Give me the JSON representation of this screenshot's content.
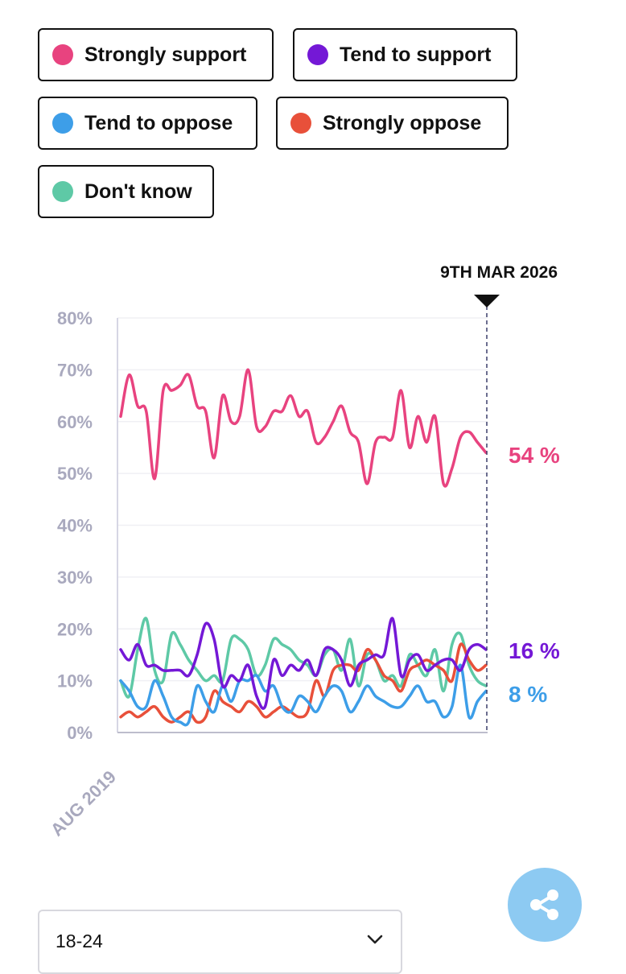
{
  "legend": [
    {
      "label": "Strongly support",
      "color": "#e8437f"
    },
    {
      "label": "Tend to support",
      "color": "#7418d6"
    },
    {
      "label": "Tend to oppose",
      "color": "#3d9ee8"
    },
    {
      "label": "Strongly oppose",
      "color": "#e8503a"
    },
    {
      "label": "Don't know",
      "color": "#5ec9a6"
    }
  ],
  "chart_data": {
    "type": "line",
    "title": "",
    "marker_label": "9TH MAR 2026",
    "x_start_label": "AUG 2019",
    "ylim": [
      0,
      80
    ],
    "yticks": [
      "0%",
      "10%",
      "20%",
      "30%",
      "40%",
      "50%",
      "60%",
      "70%",
      "80%"
    ],
    "end_labels": [
      {
        "series": "Strongly support",
        "text": "54 %",
        "value": 54
      },
      {
        "series": "Tend to support",
        "text": "16 %",
        "value": 16
      },
      {
        "series": "Tend to oppose",
        "text": "8 %",
        "value": 8
      }
    ],
    "series": [
      {
        "name": "Strongly support",
        "color": "#e8437f",
        "values": [
          61,
          69,
          63,
          62,
          49,
          66,
          66,
          67,
          69,
          63,
          62,
          53,
          65,
          60,
          61,
          70,
          59,
          59,
          62,
          62,
          65,
          61,
          62,
          56,
          57,
          60,
          63,
          58,
          56,
          48,
          56,
          57,
          57,
          66,
          55,
          61,
          56,
          61,
          48,
          51,
          57,
          58,
          56,
          54
        ]
      },
      {
        "name": "Tend to support",
        "color": "#7418d6",
        "values": [
          16,
          14,
          17,
          13,
          13,
          12,
          12,
          12,
          11,
          15,
          21,
          18,
          9,
          11,
          10,
          13,
          7,
          5,
          14,
          11,
          13,
          12,
          14,
          11,
          16,
          16,
          14,
          9,
          13,
          14,
          15,
          15,
          22,
          11,
          14,
          15,
          12,
          13,
          14,
          14,
          12,
          16,
          17,
          16
        ]
      },
      {
        "name": "Tend to oppose",
        "color": "#3d9ee8",
        "values": [
          10,
          8,
          5,
          5,
          10,
          7,
          3,
          2,
          2,
          9,
          6,
          4,
          9,
          6,
          10,
          10,
          11,
          8,
          9,
          5,
          4,
          7,
          6,
          4,
          7,
          9,
          8,
          4,
          6,
          9,
          7,
          6,
          5,
          5,
          7,
          9,
          6,
          6,
          3,
          5,
          13,
          3,
          6,
          8
        ]
      },
      {
        "name": "Strongly oppose",
        "color": "#e8503a",
        "values": [
          3,
          4,
          3,
          4,
          5,
          3,
          2,
          3,
          4,
          2,
          3,
          8,
          6,
          5,
          4,
          6,
          5,
          3,
          4,
          5,
          4,
          3,
          4,
          10,
          7,
          12,
          13,
          13,
          12,
          16,
          14,
          11,
          10,
          8,
          12,
          13,
          14,
          13,
          12,
          10,
          17,
          14,
          12,
          13
        ]
      },
      {
        "name": "Don't know",
        "color": "#5ec9a6",
        "values": [
          10,
          7,
          16,
          22,
          12,
          10,
          19,
          17,
          14,
          12,
          10,
          11,
          10,
          18,
          18,
          16,
          11,
          13,
          18,
          17,
          16,
          14,
          13,
          11,
          15,
          16,
          12,
          18,
          9,
          15,
          14,
          10,
          11,
          9,
          15,
          13,
          11,
          16,
          8,
          17,
          19,
          13,
          10,
          9
        ]
      }
    ]
  },
  "dropdown": {
    "selected": "18-24"
  }
}
